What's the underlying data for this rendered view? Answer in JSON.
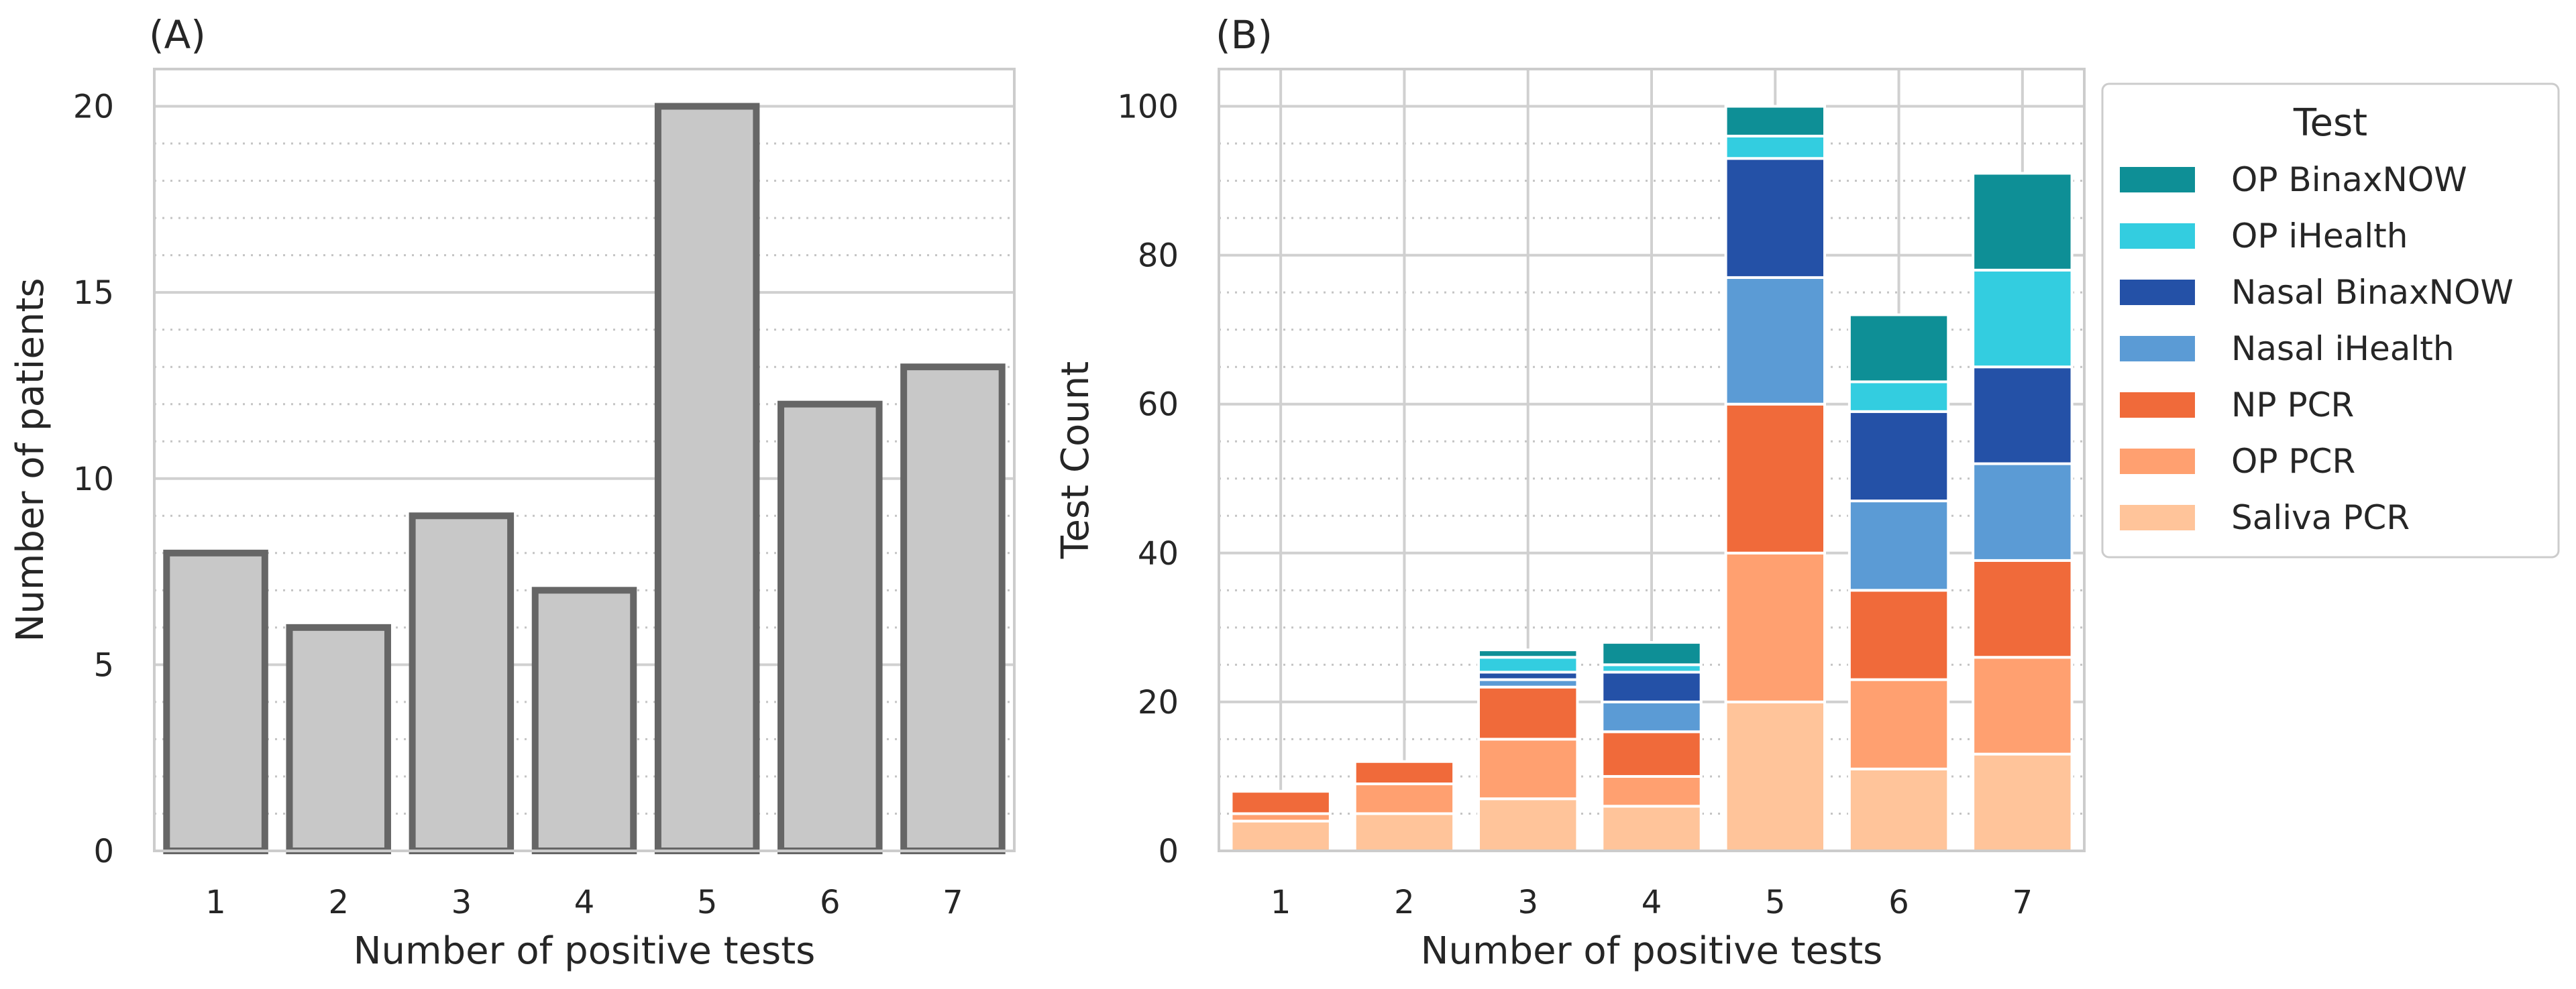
{
  "chart_data": [
    {
      "panel_label": "(A)",
      "type": "bar",
      "categories": [
        "1",
        "2",
        "3",
        "4",
        "5",
        "6",
        "7"
      ],
      "values": [
        8,
        6,
        9,
        7,
        20,
        12,
        13
      ],
      "xlabel": "Number of positive tests",
      "ylabel": "Number of patients",
      "ylim": [
        0,
        21
      ],
      "yticks": [
        "0",
        "5",
        "10",
        "15",
        "20"
      ],
      "bar_color": "#c8c8c8",
      "edge_color": "#666666",
      "grid": true
    },
    {
      "panel_label": "(B)",
      "type": "bar",
      "stacked": true,
      "categories": [
        "1",
        "2",
        "3",
        "4",
        "5",
        "6",
        "7"
      ],
      "series": [
        {
          "name": "Saliva PCR",
          "color": "#ffc49a",
          "values": [
            4,
            5,
            7,
            6,
            20,
            11,
            13
          ]
        },
        {
          "name": "OP PCR",
          "color": "#ffa070",
          "values": [
            1,
            4,
            8,
            4,
            20,
            12,
            13
          ]
        },
        {
          "name": "NP PCR",
          "color": "#f06a3a",
          "values": [
            3,
            3,
            7,
            6,
            20,
            12,
            13
          ]
        },
        {
          "name": "Nasal iHealth",
          "color": "#5b9bd5",
          "values": [
            0,
            0,
            1,
            4,
            17,
            12,
            13
          ]
        },
        {
          "name": "Nasal BinaxNOW",
          "color": "#2451a7",
          "values": [
            0,
            0,
            1,
            4,
            16,
            12,
            13
          ]
        },
        {
          "name": "OP iHealth",
          "color": "#33cde0",
          "values": [
            0,
            0,
            2,
            1,
            3,
            4,
            13
          ]
        },
        {
          "name": "OP BinaxNOW",
          "color": "#0e8f96",
          "values": [
            0,
            0,
            1,
            3,
            4,
            9,
            13
          ]
        }
      ],
      "xlabel": "Number of positive tests",
      "ylabel": "Test Count",
      "ylim": [
        0,
        105
      ],
      "yticks": [
        "0",
        "20",
        "40",
        "60",
        "80",
        "100"
      ],
      "grid": true,
      "legend": {
        "title": "Test",
        "position": "outside-right",
        "entries": [
          "OP BinaxNOW",
          "OP iHealth",
          "Nasal BinaxNOW",
          "Nasal iHealth",
          "NP PCR",
          "OP PCR",
          "Saliva PCR"
        ]
      }
    }
  ]
}
